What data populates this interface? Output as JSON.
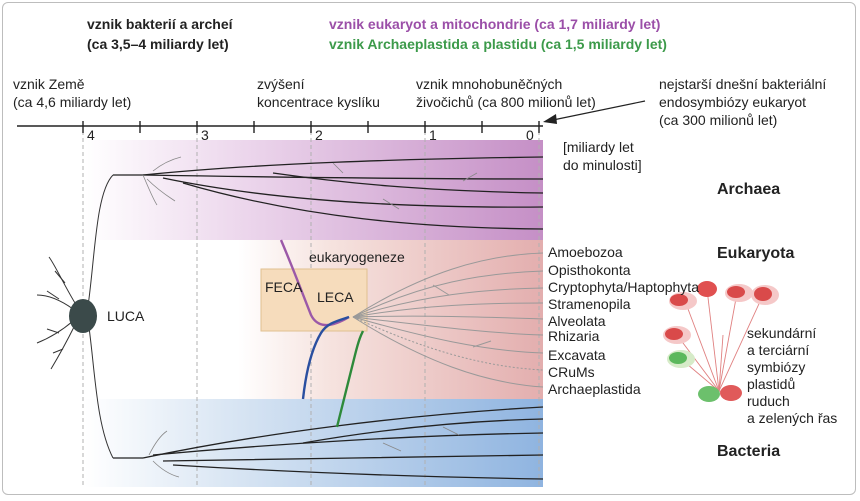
{
  "colors": {
    "eukaryote_line": "#9b59a8",
    "archaeplastida_line": "#3c9a4a",
    "archaea_band": "#c79bc9",
    "eukaryota_band": "#e2b3b3",
    "bacteria_band": "#9fbfe3",
    "luca": "#3b4a4a",
    "feca_box": "#f5dcbf"
  },
  "header": {
    "bacteria_archaea_line1": "vznik bakterií a archeí",
    "bacteria_archaea_line2": "(ca 3,5–4 miliardy let)",
    "eukaryotes": "vznik eukaryot a mitochondrie (ca 1,7 miliardy let)",
    "archaeplastida": "vznik Archaeplastida a plastidu (ca 1,5 miliardy let)"
  },
  "events": {
    "earth_line1": "vznik Země",
    "earth_line2": "(ca 4,6 miliardy let)",
    "oxygen_line1": "zvýšení",
    "oxygen_line2": "koncentrace kyslíku",
    "multicellular_line1": "vznik mnohobuněčných",
    "multicellular_line2": "živočichů (ca 800 milionů let)",
    "endosymbiosis_line1": "nejstarší dnešní bakteriální",
    "endosymbiosis_line2": "endosymbiózy eukaryot",
    "endosymbiosis_line3": "(ca 300 milionů let)"
  },
  "axis": {
    "ticks": [
      "4",
      "3",
      "2",
      "1",
      "0"
    ],
    "unit_line1": "[miliardy let",
    "unit_line2": "do minulosti]"
  },
  "domains": {
    "archaea": "Archaea",
    "eukaryota": "Eukaryota",
    "bacteria": "Bacteria"
  },
  "labels": {
    "luca": "LUCA",
    "feca": "FECA",
    "leca": "LECA",
    "eukaryogenesis": "eukaryogeneze"
  },
  "eukaryote_groups": [
    "Amoebozoa",
    "Opisthokonta",
    "Cryptophyta/Haptophyta",
    "Stramenopila",
    "Alveolata",
    "Rhizaria",
    "Excavata",
    "CRuMs",
    "Archaeplastida"
  ],
  "symbiosis_note": [
    "sekundární",
    "a terciární",
    "symbiózy",
    "plastidů",
    "ruduch",
    "a zelených řas"
  ]
}
